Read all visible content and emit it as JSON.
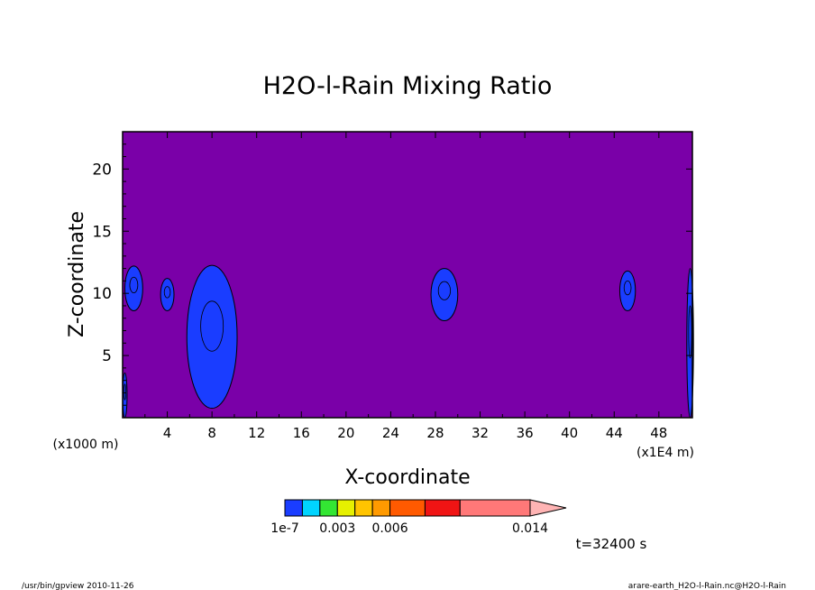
{
  "chart_data": {
    "type": "heatmap",
    "title": "H2O-l-Rain Mixing Ratio",
    "xlabel": "X-coordinate",
    "ylabel": "Z-coordinate",
    "x_unit_left": "(x1000 m)",
    "x_unit_right": "(x1E4 m)",
    "xlim": [
      0,
      51
    ],
    "ylim": [
      0,
      23
    ],
    "xticks": [
      4,
      8,
      12,
      16,
      20,
      24,
      28,
      32,
      36,
      40,
      44,
      48
    ],
    "yticks": [
      5,
      10,
      15,
      20
    ],
    "background_color": "#7a00a8",
    "colorbar": {
      "labels": [
        {
          "text": "1e-7",
          "at": 0
        },
        {
          "text": "0.003",
          "at": 3
        },
        {
          "text": "0.006",
          "at": 6
        },
        {
          "text": "0.014",
          "at": 14
        }
      ],
      "levels": [
        0,
        1,
        2,
        3,
        4,
        5,
        6,
        8,
        10,
        14
      ],
      "colors": [
        "#1a3dff",
        "#00d4ff",
        "#33e633",
        "#e6f000",
        "#ffc400",
        "#ff9a00",
        "#ff5a00",
        "#f01414",
        "#ff7878"
      ],
      "extension_color": "#ffb4b4"
    },
    "features": [
      {
        "x": 1.0,
        "z": 10.4,
        "w": 1.6,
        "h": 3.6
      },
      {
        "x": 4.0,
        "z": 9.9,
        "w": 1.2,
        "h": 2.6
      },
      {
        "x": 8.0,
        "z": 6.5,
        "w": 4.5,
        "h": 11.5
      },
      {
        "x": 28.8,
        "z": 9.9,
        "w": 2.4,
        "h": 4.2
      },
      {
        "x": 45.2,
        "z": 10.2,
        "w": 1.4,
        "h": 3.2
      },
      {
        "x": 50.8,
        "z": 6.0,
        "w": 0.6,
        "h": 12.0
      },
      {
        "x": 0.2,
        "z": 1.8,
        "w": 0.4,
        "h": 3.6
      }
    ],
    "time_label": "t=32400 s"
  },
  "footer": {
    "left": "/usr/bin/gpview   2010-11-26",
    "right": "arare-earth_H2O-l-Rain.nc@H2O-l-Rain"
  }
}
